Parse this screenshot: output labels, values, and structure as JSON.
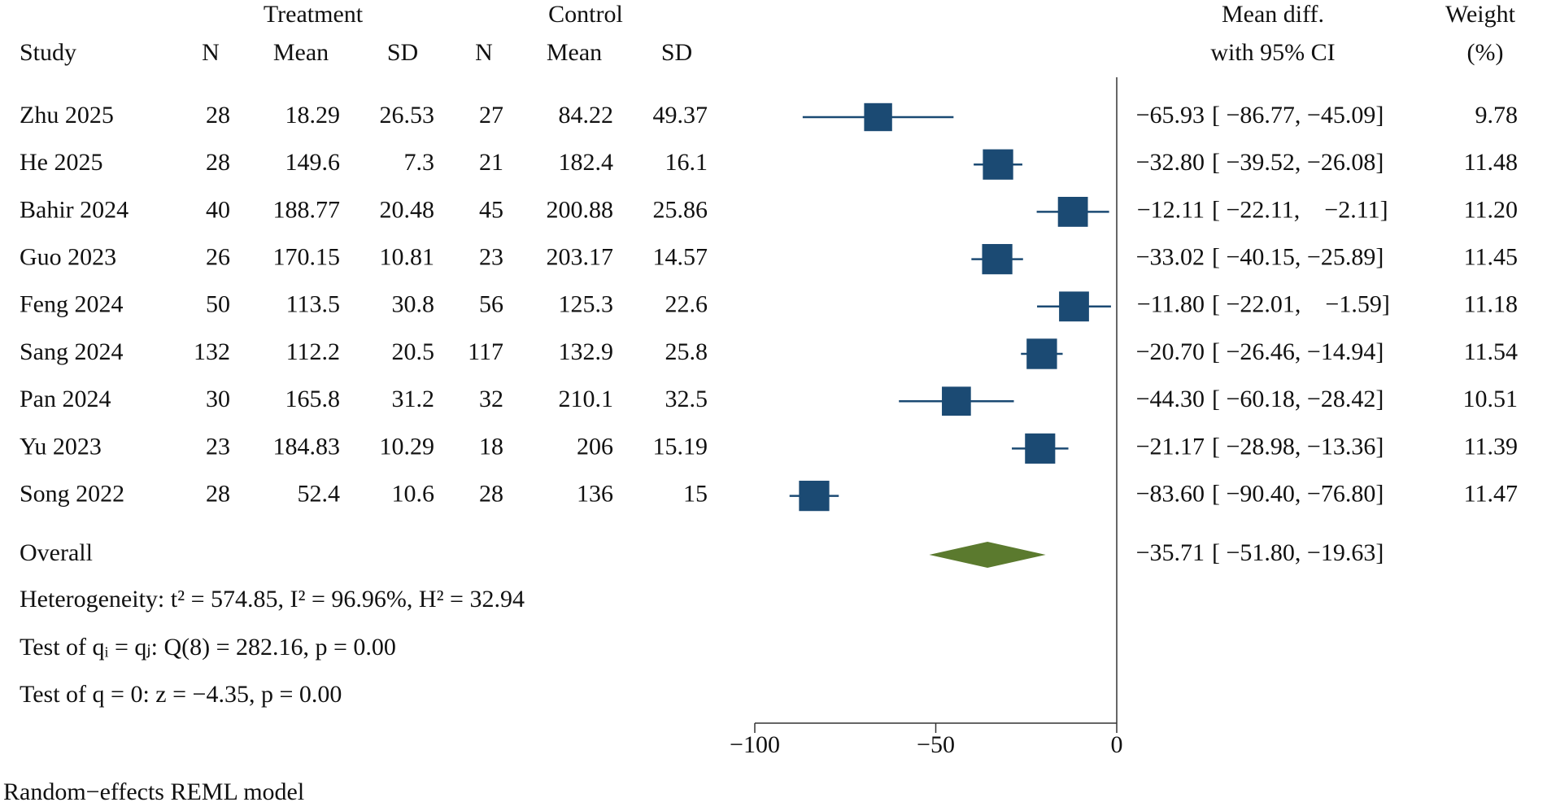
{
  "chart_data": {
    "type": "forest",
    "headers": {
      "treatment": "Treatment",
      "control": "Control",
      "study": "Study",
      "n_t": "N",
      "mean_t": "Mean",
      "sd_t": "SD",
      "n_c": "N",
      "mean_c": "Mean",
      "sd_c": "SD",
      "effect": "Mean diff.",
      "effect_ci": "with 95% CI",
      "weight": "Weight",
      "weight_unit": "(%)"
    },
    "studies": [
      {
        "name": "Zhu 2025",
        "n_t": 28,
        "mean_t": 18.29,
        "sd_t": 26.53,
        "n_c": 27,
        "mean_c": 84.22,
        "sd_c": 49.37,
        "md": -65.93,
        "md_label": "−65.93",
        "ci": [
          -86.77,
          -45.09
        ],
        "ci_label": "[ −86.77, −45.09]",
        "weight": 9.78
      },
      {
        "name": "He 2025",
        "n_t": 28,
        "mean_t": 149.6,
        "sd_t": 7.3,
        "n_c": 21,
        "mean_c": 182.4,
        "sd_c": 16.1,
        "md": -32.8,
        "md_label": "−32.80",
        "ci": [
          -39.52,
          -26.08
        ],
        "ci_label": "[ −39.52, −26.08]",
        "weight": 11.48
      },
      {
        "name": "Bahir 2024",
        "n_t": 40,
        "mean_t": 188.77,
        "sd_t": 20.48,
        "n_c": 45,
        "mean_c": 200.88,
        "sd_c": 25.86,
        "md": -12.11,
        "md_label": "−12.11",
        "ci": [
          -22.11,
          -2.11
        ],
        "ci_label": "[ −22.11,    −2.11]",
        "weight": 11.2,
        "weight_label": "11.20"
      },
      {
        "name": "Guo 2023",
        "n_t": 26,
        "mean_t": 170.15,
        "sd_t": 10.81,
        "n_c": 23,
        "mean_c": 203.17,
        "sd_c": 14.57,
        "md": -33.02,
        "md_label": "−33.02",
        "ci": [
          -40.15,
          -25.89
        ],
        "ci_label": "[ −40.15, −25.89]",
        "weight": 11.45
      },
      {
        "name": "Feng 2024",
        "n_t": 50,
        "mean_t": 113.5,
        "sd_t": 30.8,
        "n_c": 56,
        "mean_c": 125.3,
        "sd_c": 22.6,
        "md": -11.8,
        "md_label": "−11.80",
        "ci": [
          -22.01,
          -1.59
        ],
        "ci_label": "[ −22.01,    −1.59]",
        "weight": 11.18
      },
      {
        "name": "Sang 2024",
        "n_t": 132,
        "mean_t": 112.2,
        "sd_t": 20.5,
        "n_c": 117,
        "mean_c": 132.9,
        "sd_c": 25.8,
        "md": -20.7,
        "md_label": "−20.70",
        "ci": [
          -26.46,
          -14.94
        ],
        "ci_label": "[ −26.46, −14.94]",
        "weight": 11.54
      },
      {
        "name": "Pan 2024",
        "n_t": 30,
        "mean_t": 165.8,
        "sd_t": 31.2,
        "n_c": 32,
        "mean_c": 210.1,
        "sd_c": 32.5,
        "md": -44.3,
        "md_label": "−44.30",
        "ci": [
          -60.18,
          -28.42
        ],
        "ci_label": "[ −60.18, −28.42]",
        "weight": 10.51
      },
      {
        "name": "Yu 2023",
        "n_t": 23,
        "mean_t": 184.83,
        "sd_t": 10.29,
        "n_c": 18,
        "mean_c": 206,
        "sd_c": 15.19,
        "md": -21.17,
        "md_label": "−21.17",
        "ci": [
          -28.98,
          -13.36
        ],
        "ci_label": "[ −28.98, −13.36]",
        "weight": 11.39
      },
      {
        "name": "Song 2022",
        "n_t": 28,
        "mean_t": 52.4,
        "sd_t": 10.6,
        "n_c": 28,
        "mean_c": 136,
        "sd_c": 15,
        "md": -83.6,
        "md_label": "−83.60",
        "ci": [
          -90.4,
          -76.8
        ],
        "ci_label": "[ −90.40, −76.80]",
        "weight": 11.47
      }
    ],
    "overall": {
      "name": "Overall",
      "md": -35.71,
      "md_label": "−35.71",
      "ci": [
        -51.8,
        -19.63
      ],
      "ci_label": "[ −51.80, −19.63]"
    },
    "heterogeneity": "Heterogeneity: t² = 574.85, I² = 96.96%, H² = 32.94",
    "test_homogeneity": "Test of qᵢ = qⱼ: Q(8) = 282.16, p = 0.00",
    "test_effect": "Test of q = 0: z = −4.35, p = 0.00",
    "note": "Random−effects REML model",
    "xlim": [
      -100,
      0
    ],
    "xticks": [
      {
        "value": -100,
        "label": "−100"
      },
      {
        "value": -50,
        "label": "−50"
      },
      0
    ],
    "marker_color": "#1b4a73",
    "overall_color": "#5b7a2e"
  }
}
